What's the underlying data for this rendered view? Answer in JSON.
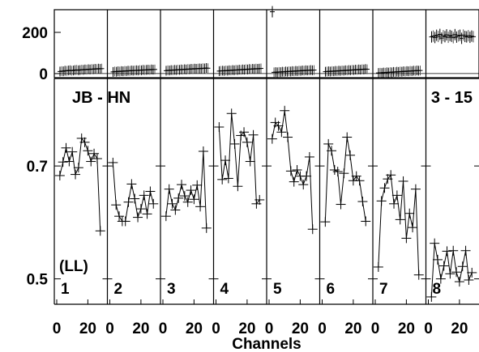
{
  "chart_data": {
    "type": "scatter",
    "xlabel": "Channels",
    "baseline_label": "JB - HN",
    "scan_range_label": "3 - 15",
    "polarization_label": "(LL)",
    "x_ticks": [
      0,
      20
    ],
    "x_range": [
      0,
      31
    ],
    "top_panel": {
      "y_ticks": [
        0,
        200
      ],
      "y_range": [
        -20,
        310
      ]
    },
    "bottom_panel": {
      "y_ticks": [
        0.7,
        0.5
      ],
      "y_range": [
        0.455,
        0.855
      ]
    },
    "panels": [
      {
        "label": "1",
        "top_values": [
          10,
          12,
          11,
          14,
          13,
          15,
          16,
          14,
          15,
          17,
          18,
          16,
          17,
          19,
          18,
          20,
          19,
          21,
          20,
          22,
          21,
          23,
          22,
          24,
          23,
          24
        ],
        "x": [
          2,
          4,
          6,
          8,
          10,
          12,
          14,
          16,
          18,
          20,
          22,
          24,
          26,
          28
        ],
        "values": [
          0.683,
          0.707,
          0.732,
          0.708,
          0.725,
          0.685,
          0.697,
          0.749,
          0.742,
          0.727,
          0.708,
          0.722,
          0.713,
          0.585
        ]
      },
      {
        "label": "2",
        "top_values": [
          8,
          10,
          9,
          11,
          10,
          12,
          11,
          13,
          12,
          14,
          13,
          15,
          14,
          15,
          16,
          15,
          17,
          16,
          18,
          17,
          18,
          19,
          18,
          20,
          19,
          20
        ],
        "x": [
          2,
          4,
          6,
          8,
          10,
          12,
          14,
          16,
          18,
          20,
          22,
          24,
          26,
          28
        ],
        "values": [
          0.706,
          0.631,
          0.611,
          0.602,
          0.602,
          0.636,
          0.668,
          0.642,
          0.609,
          0.624,
          0.648,
          0.615,
          0.655,
          0.633
        ]
      },
      {
        "label": "3",
        "top_values": [
          14,
          16,
          15,
          17,
          16,
          18,
          17,
          19,
          18,
          20,
          19,
          21,
          20,
          22,
          21,
          23,
          22,
          24,
          23,
          24,
          25,
          24,
          26,
          25,
          27,
          26
        ],
        "x": [
          2,
          4,
          6,
          8,
          10,
          12,
          14,
          16,
          18,
          20,
          22,
          24,
          26,
          28
        ],
        "values": [
          0.611,
          0.659,
          0.633,
          0.622,
          0.643,
          0.667,
          0.647,
          0.636,
          0.657,
          0.641,
          0.666,
          0.628,
          0.726,
          0.59
        ]
      },
      {
        "label": "4",
        "top_values": [
          12,
          13,
          14,
          13,
          15,
          14,
          16,
          15,
          17,
          16,
          18,
          17,
          19,
          18,
          20,
          19,
          21,
          20,
          22,
          21,
          23,
          22,
          24,
          23,
          24,
          25
        ],
        "x": [
          2,
          4,
          6,
          8,
          10,
          12,
          14,
          16,
          18,
          20,
          22,
          24,
          26,
          28
        ],
        "values": [
          0.769,
          0.676,
          0.71,
          0.678,
          0.793,
          0.739,
          0.664,
          0.754,
          0.76,
          0.742,
          0.708,
          0.755,
          0.633,
          0.64
        ]
      },
      {
        "label": "5",
        "top_values": [
          300,
          6,
          7,
          6,
          8,
          7,
          9,
          8,
          10,
          9,
          11,
          10,
          12,
          11,
          13,
          12,
          14,
          13,
          15,
          14,
          16,
          15,
          16,
          17,
          16,
          17
        ],
        "x": [
          2,
          4,
          6,
          8,
          10,
          12,
          14,
          16,
          18,
          20,
          22,
          24,
          26,
          28
        ],
        "values": [
          0.748,
          0.777,
          0.771,
          0.76,
          0.798,
          0.751,
          0.691,
          0.672,
          0.693,
          0.682,
          0.667,
          0.682,
          0.716,
          0.588
        ]
      },
      {
        "label": "6",
        "top_values": [
          9,
          10,
          11,
          10,
          12,
          11,
          13,
          12,
          14,
          13,
          15,
          14,
          16,
          15,
          17,
          16,
          18,
          17,
          19,
          18,
          20,
          19,
          21,
          20,
          22,
          21
        ],
        "x": [
          2,
          4,
          6,
          8,
          10,
          12,
          14,
          16,
          18,
          20,
          22,
          24,
          26,
          28
        ],
        "values": [
          0.601,
          0.739,
          0.727,
          0.693,
          0.69,
          0.632,
          0.687,
          0.751,
          0.719,
          0.674,
          0.682,
          0.674,
          0.637,
          0.602
        ]
      },
      {
        "label": "7",
        "top_values": [
          3,
          4,
          3,
          5,
          4,
          6,
          5,
          7,
          6,
          8,
          7,
          9,
          8,
          10,
          9,
          11,
          10,
          12,
          11,
          13,
          12,
          14,
          13,
          15,
          14,
          15
        ],
        "x": [
          2,
          4,
          6,
          8,
          10,
          12,
          14,
          16,
          18,
          20,
          22,
          24,
          26,
          28
        ],
        "values": [
          0.521,
          0.638,
          0.661,
          0.677,
          0.684,
          0.633,
          0.648,
          0.605,
          0.673,
          0.572,
          0.616,
          0.591,
          0.659,
          0.507
        ]
      },
      {
        "label": "8",
        "top_values": [
          178,
          182,
          175,
          186,
          180,
          190,
          172,
          184,
          179,
          188,
          176,
          185,
          181,
          174,
          189,
          177,
          183,
          186,
          171,
          187,
          180,
          178,
          184,
          176,
          182,
          179
        ],
        "x": [
          2,
          4,
          6,
          8,
          10,
          12,
          14,
          16,
          18,
          20,
          22,
          24,
          26,
          28
        ],
        "values": [
          0.468,
          0.563,
          0.534,
          0.5,
          0.523,
          0.549,
          0.509,
          0.55,
          0.512,
          0.495,
          0.522,
          0.55,
          0.498,
          0.511
        ]
      }
    ]
  }
}
